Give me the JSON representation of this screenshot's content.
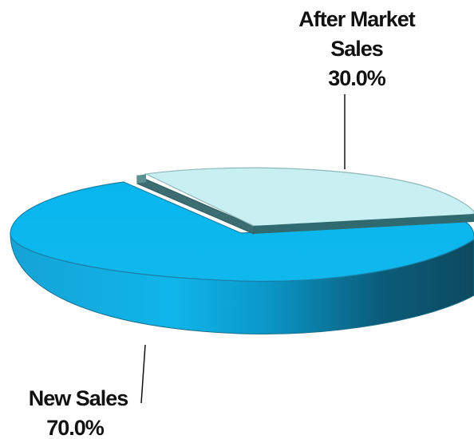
{
  "chart_data": {
    "type": "pie",
    "title": "",
    "slices": [
      {
        "label_lines": [
          "After Market",
          "Sales"
        ],
        "pct_text": "30.0%",
        "value": 30.0,
        "color": "#c8f0f2",
        "edge_color": "#8fb8bc",
        "dark_color": "#2f6a70"
      },
      {
        "label_lines": [
          "New Sales"
        ],
        "pct_text": "70.0%",
        "value": 70.0,
        "color": "#0ab2ea",
        "edge_color": "#0a6fb0",
        "dark_color": "#0f4658"
      }
    ],
    "three_d": true,
    "exploded": "After Market Sales",
    "legend": "none"
  }
}
